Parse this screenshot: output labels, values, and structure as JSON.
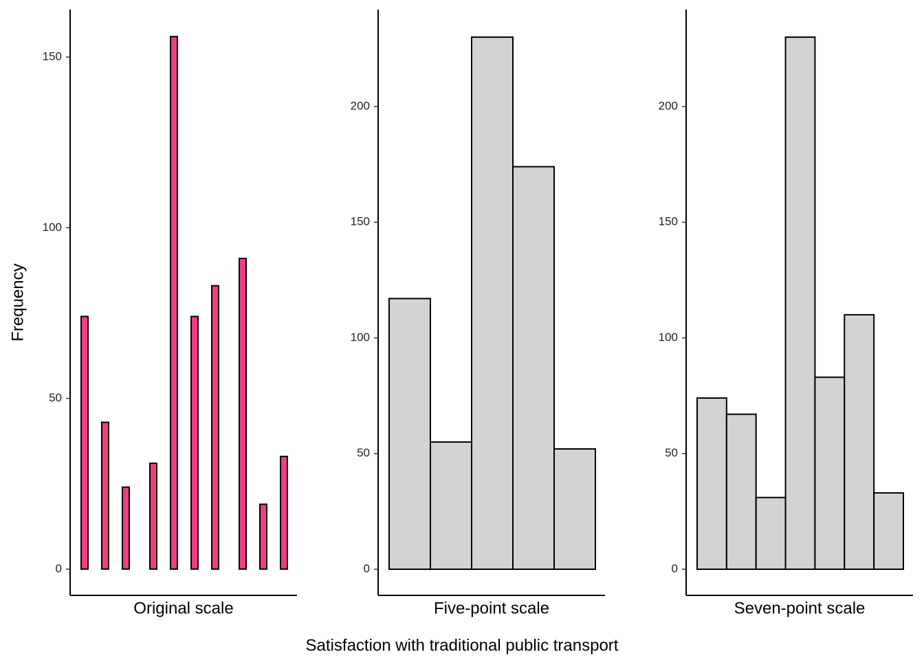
{
  "x_label": "Satisfaction with traditional public transport",
  "y_label": "Frequency",
  "chart_data": [
    {
      "type": "bar",
      "panel_label": "Original scale",
      "categories": [
        null,
        null,
        null,
        null,
        null,
        null,
        null,
        null,
        null,
        null,
        null,
        null,
        null,
        null,
        null,
        null,
        null,
        null,
        null,
        null,
        null,
        null,
        null,
        null,
        null,
        null,
        null,
        null,
        null,
        null
      ],
      "values": [
        74,
        0,
        0,
        43,
        0,
        0,
        24,
        0,
        0,
        0,
        31,
        0,
        0,
        156,
        0,
        0,
        74,
        0,
        0,
        83,
        0,
        0,
        0,
        91,
        0,
        0,
        19,
        0,
        0,
        33
      ],
      "color": "#f23d84",
      "ylim": [
        -7.7,
        163.9
      ],
      "yticks": [
        0,
        50,
        100,
        150
      ]
    },
    {
      "type": "bar",
      "panel_label": "Five-point scale",
      "categories": [
        null,
        null,
        null,
        null,
        null
      ],
      "values": [
        117,
        55,
        230,
        174,
        52
      ],
      "color": "#d3d3d3",
      "ylim": [
        -11.3,
        241.9
      ],
      "yticks": [
        0,
        50,
        100,
        150,
        200
      ]
    },
    {
      "type": "bar",
      "panel_label": "Seven-point scale",
      "categories": [
        null,
        null,
        null,
        null,
        null,
        null,
        null
      ],
      "values": [
        74,
        67,
        31,
        230,
        83,
        110,
        33
      ],
      "color": "#d3d3d3",
      "ylim": [
        -11.3,
        241.9
      ],
      "yticks": [
        0,
        50,
        100,
        150,
        200
      ]
    }
  ]
}
